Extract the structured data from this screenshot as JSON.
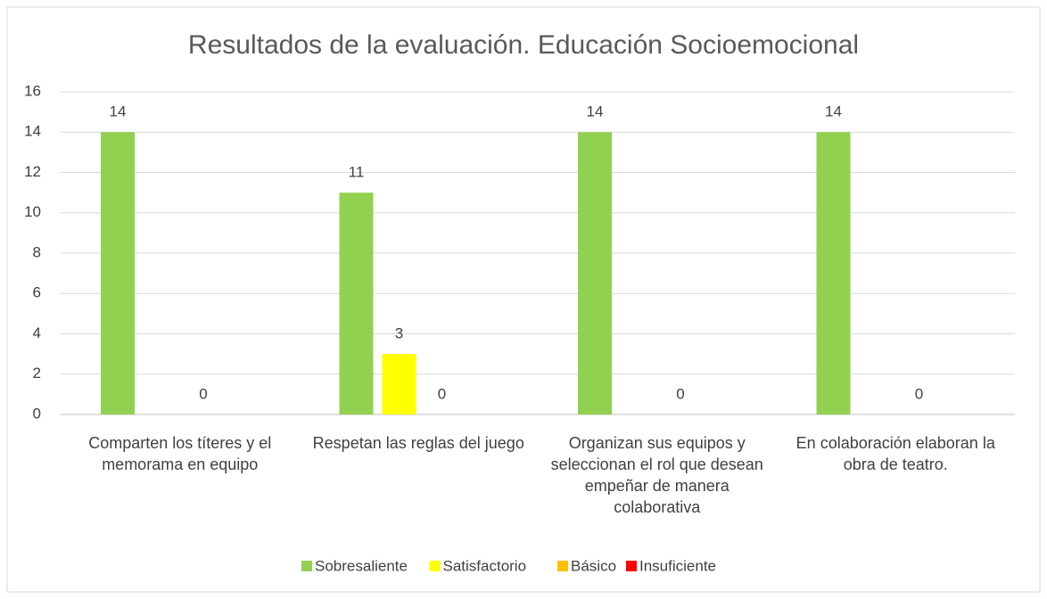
{
  "chart_data": {
    "type": "bar",
    "title": "Resultados de la evaluación. Educación Socioemocional",
    "categories": [
      "Comparten los títeres y el memorama en equipo",
      "Respetan las reglas del juego",
      "Organizan sus equipos y seleccionan el rol que desean empeñar de manera colaborativa",
      "En colaboración elaboran la obra de teatro."
    ],
    "series": [
      {
        "name": "Sobresaliente",
        "color": "#92d050",
        "values": [
          14,
          11,
          14,
          14
        ]
      },
      {
        "name": "Satisfactorio",
        "color": "#ffff00",
        "values": [
          null,
          3,
          null,
          null
        ]
      },
      {
        "name": "Básico",
        "color": "#ffc000",
        "values": [
          0,
          0,
          0,
          0
        ]
      },
      {
        "name": "Insuficiente",
        "color": "#ff0000",
        "values": [
          null,
          null,
          null,
          null
        ]
      }
    ],
    "ylim": [
      0,
      16
    ],
    "yticks": [
      0,
      2,
      4,
      6,
      8,
      10,
      12,
      14,
      16
    ],
    "grid": true,
    "legend": "bottom"
  }
}
